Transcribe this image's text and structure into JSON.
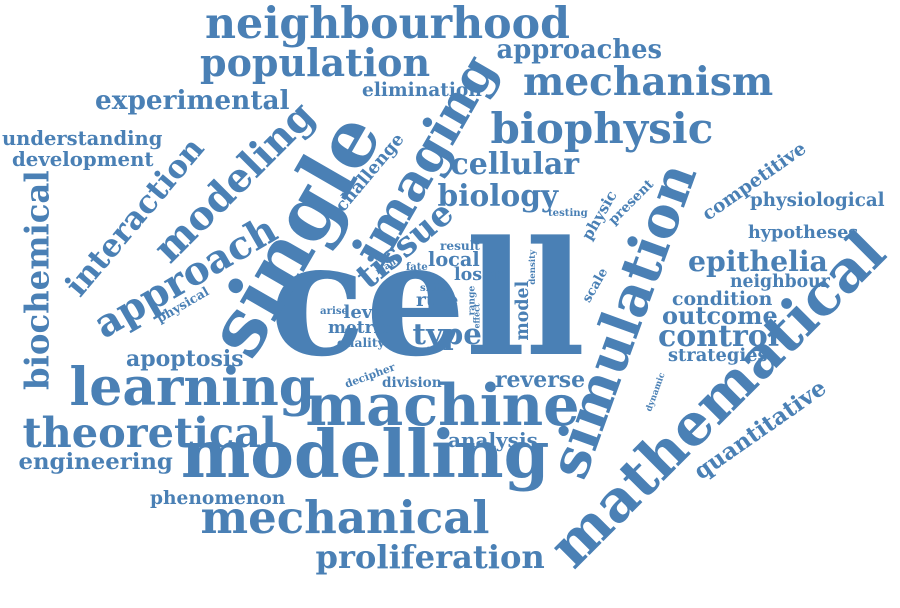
{
  "word_cloud": {
    "color": "#4a80b5",
    "words": [
      "cell",
      "simulation",
      "modelling",
      "mathematical",
      "single",
      "machine",
      "learning",
      "imaging",
      "modeling",
      "theoretical",
      "mechanical",
      "biophysic",
      "population",
      "neighbourhood",
      "approach",
      "mechanism",
      "proliferation",
      "tissue",
      "interaction",
      "biochemical",
      "epithelia",
      "engineering",
      "experimental",
      "approaches",
      "cellular",
      "biology",
      "competitive",
      "control",
      "type",
      "understanding",
      "development",
      "physiological",
      "quantitative",
      "apoptosis",
      "reverse",
      "phenomenon",
      "outcome",
      "hypotheses",
      "neighbour",
      "condition",
      "strategies",
      "analysis",
      "challenge",
      "elimination",
      "physic",
      "scale",
      "present",
      "physical",
      "dynamic",
      "local",
      "decipher",
      "division",
      "level",
      "metric",
      "rule",
      "loser",
      "quality",
      "model",
      "result",
      "many",
      "arise",
      "density",
      "testing",
      "fate",
      "shift",
      "range",
      "effect"
    ]
  }
}
